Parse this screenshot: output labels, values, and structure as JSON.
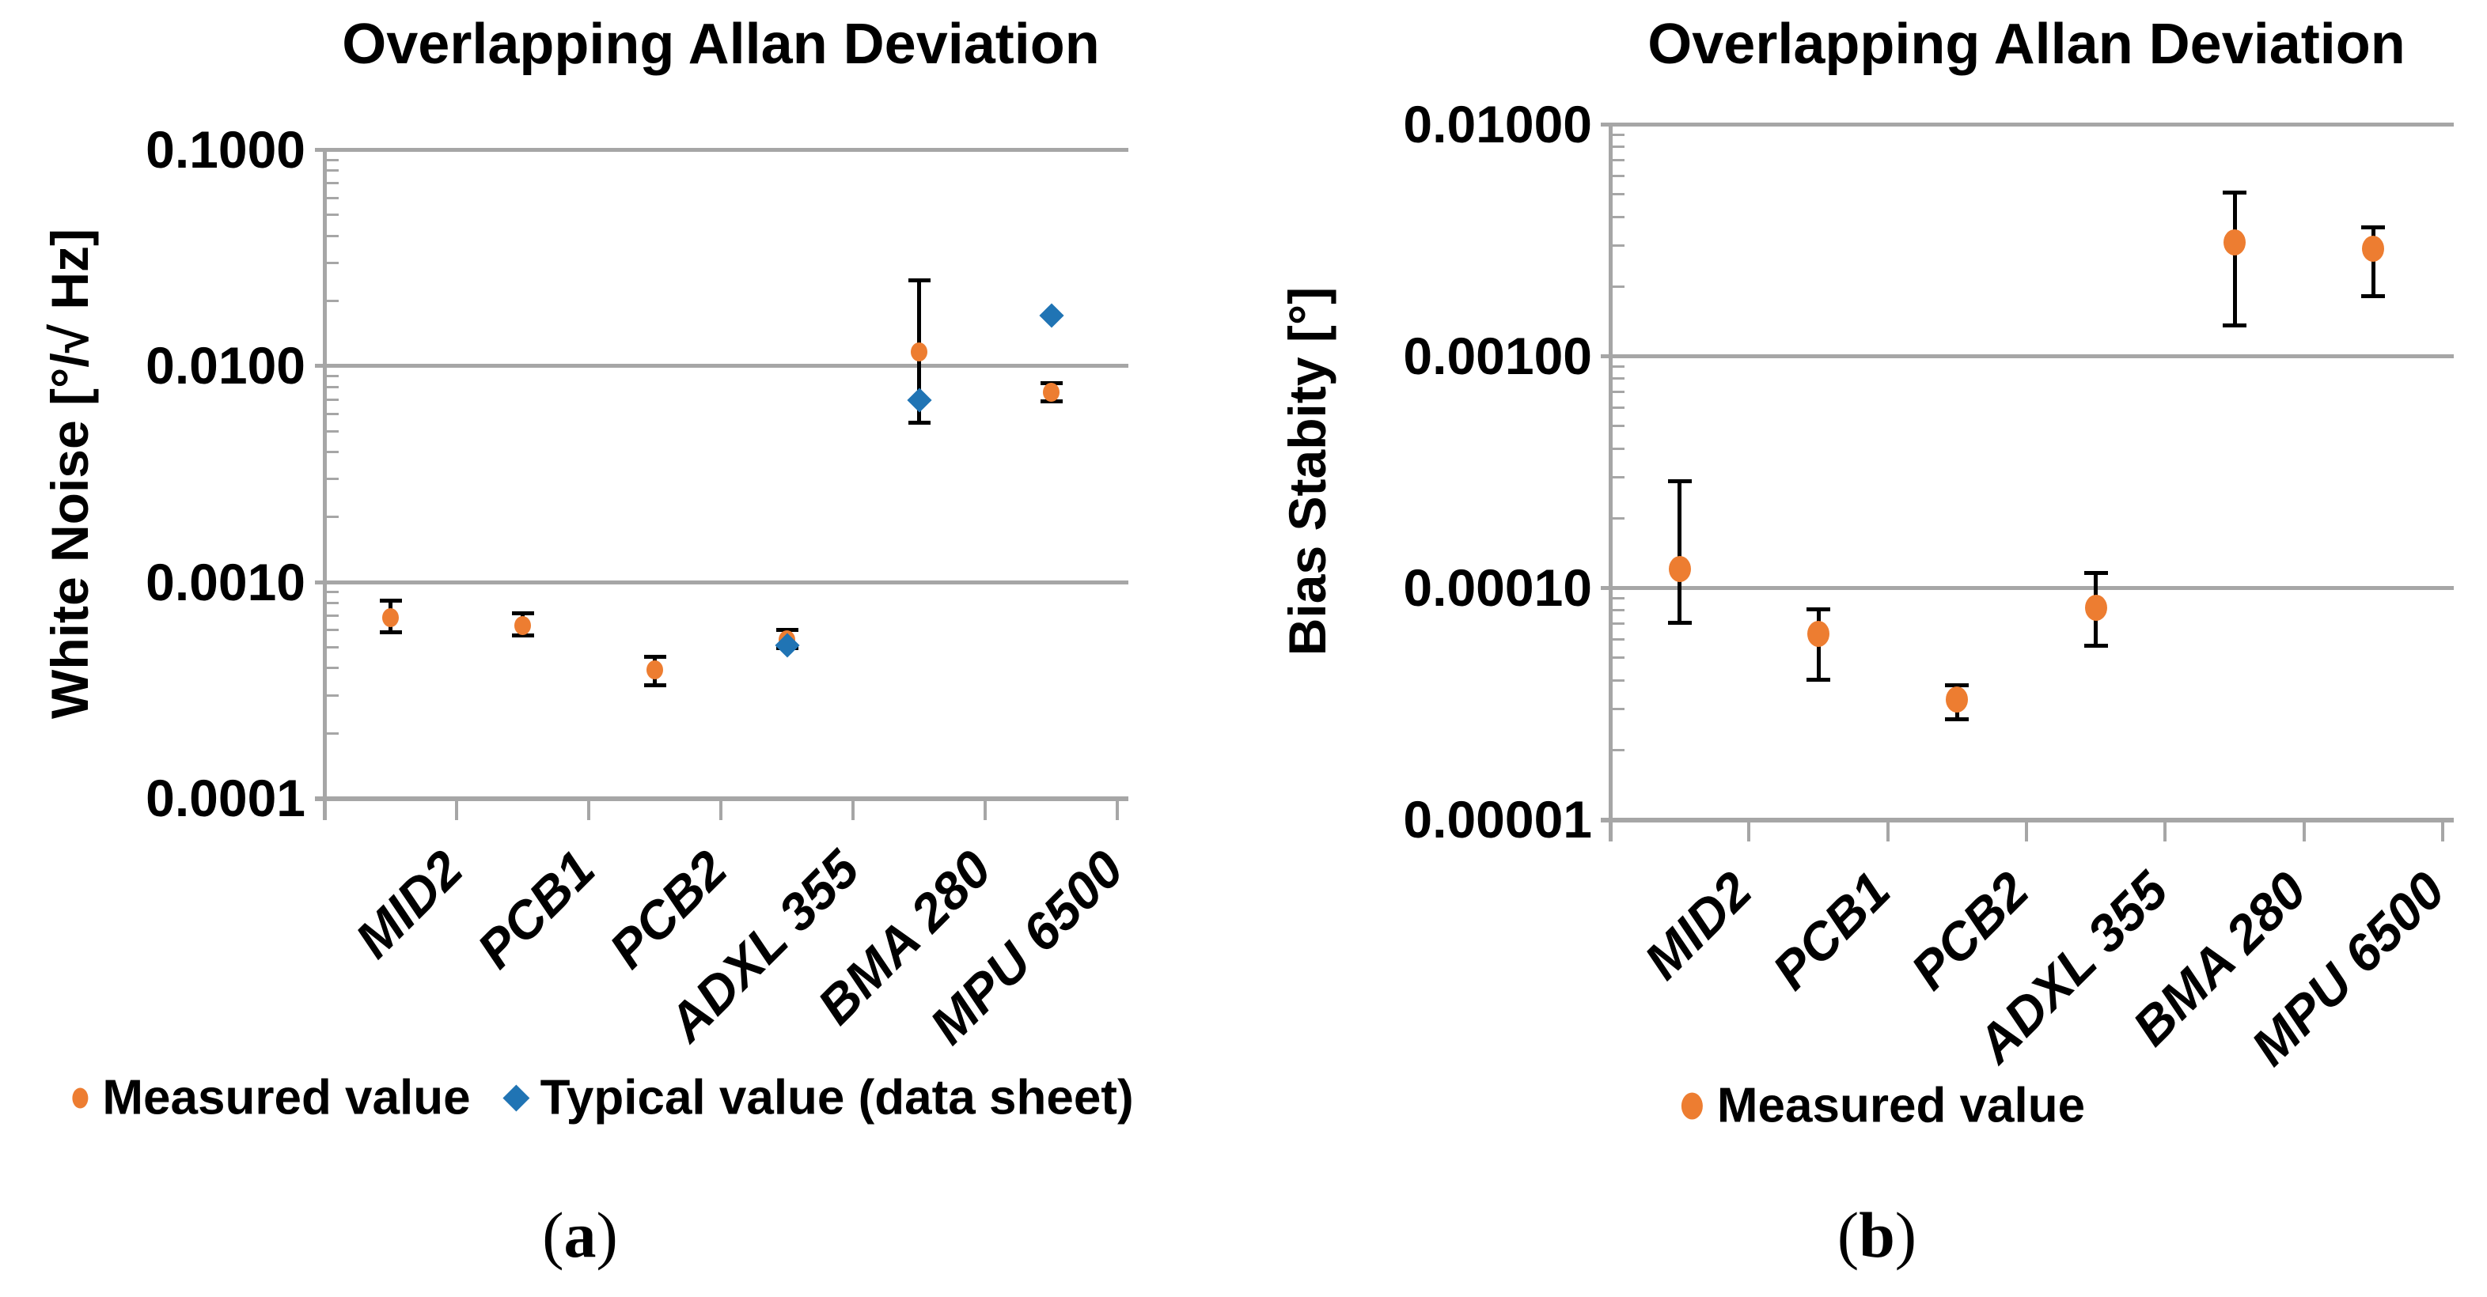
{
  "colors": {
    "measured": "#ED7D31",
    "typical": "#2074B4",
    "grid": "#A6A6A6",
    "error_bar": "#000000",
    "text": "#000000"
  },
  "chart_data": [
    {
      "type": "scatter",
      "title": "Overlapping Allan Deviation",
      "ylabel": "White Noise [°/√ Hz]",
      "xlabel": "",
      "caption": {
        "open": "(",
        "letter": "a",
        "close": ")"
      },
      "categories": [
        "MID2",
        "PCB1",
        "PCB2",
        "ADXL 355",
        "BMA 280",
        "MPU 6500"
      ],
      "y_scale": "log",
      "ylim": [
        0.0001,
        0.1
      ],
      "y_tick_labels": [
        "0.1000",
        "0.0100",
        "0.0010",
        "0.0001"
      ],
      "grid": true,
      "legend_position": "bottom",
      "series": [
        {
          "name": "Measured value",
          "marker": "circle",
          "color": "#ED7D31",
          "values": [
            0.00068,
            0.00063,
            0.00039,
            0.00054,
            0.0116,
            0.0075
          ],
          "error_low": [
            0.00058,
            0.00056,
            0.00033,
            0.00049,
            0.0054,
            0.0068
          ],
          "error_high": [
            0.00082,
            0.00072,
            0.00045,
            0.0006,
            0.025,
            0.0083
          ]
        },
        {
          "name": "Typical value (data sheet)",
          "marker": "diamond",
          "color": "#2074B4",
          "values": [
            null,
            null,
            null,
            0.00051,
            0.0069,
            0.017
          ],
          "error_low": null,
          "error_high": null
        }
      ]
    },
    {
      "type": "scatter",
      "title": "Overlapping Allan Deviation",
      "ylabel": "Bias Stabity [°]",
      "xlabel": "",
      "caption": {
        "open": "(",
        "letter": "b",
        "close": ")"
      },
      "categories": [
        "MID2",
        "PCB1",
        "PCB2",
        "ADXL 355",
        "BMA 280",
        "MPU 6500"
      ],
      "y_scale": "log",
      "ylim": [
        1e-05,
        0.01
      ],
      "y_tick_labels": [
        "0.01000",
        "0.00100",
        "0.00010",
        "0.00001"
      ],
      "grid": true,
      "legend_position": "bottom",
      "series": [
        {
          "name": "Measured value",
          "marker": "circle",
          "color": "#ED7D31",
          "values": [
            0.00012,
            6.3e-05,
            3.3e-05,
            8.2e-05,
            0.0031,
            0.0029
          ],
          "error_low": [
            7e-05,
            4e-05,
            2.7e-05,
            5.6e-05,
            0.00135,
            0.0018
          ],
          "error_high": [
            0.00029,
            8.1e-05,
            3.8e-05,
            0.000116,
            0.0051,
            0.0036
          ]
        }
      ]
    }
  ]
}
